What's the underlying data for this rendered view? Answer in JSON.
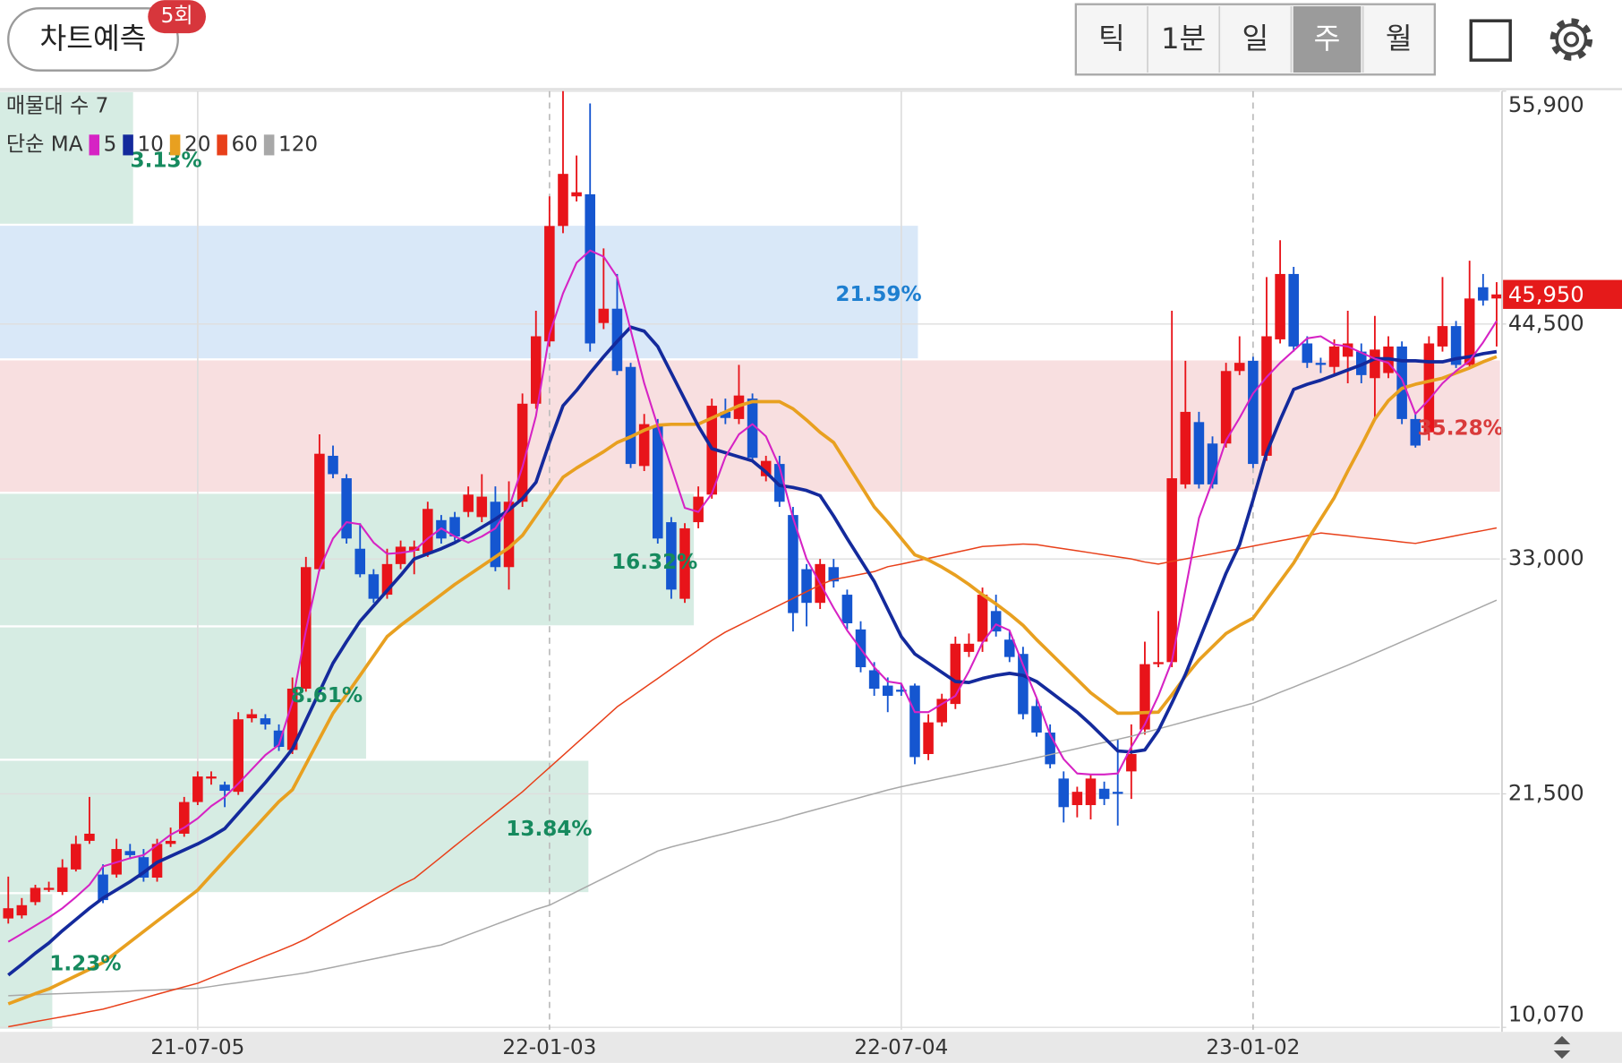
{
  "top_bar": {
    "button": "차트예측",
    "badge": "5회",
    "periods": [
      "틱",
      "1분",
      "일",
      "주",
      "월"
    ],
    "selected_period": "주"
  },
  "chart_data": {
    "type": "candlestick",
    "profile_title": "매물대 수 7",
    "ma_title": "단순 MA",
    "up_color": "#e8141a",
    "down_color": "#1556d0",
    "categories": [
      null,
      null,
      null,
      null,
      null,
      null,
      null,
      null,
      null,
      null,
      null,
      null,
      null,
      null,
      "21-07-05",
      null,
      null,
      null,
      null,
      null,
      null,
      null,
      null,
      null,
      null,
      null,
      null,
      null,
      null,
      null,
      null,
      null,
      null,
      null,
      null,
      null,
      null,
      null,
      null,
      null,
      "22-01-03",
      null,
      null,
      null,
      null,
      null,
      null,
      null,
      null,
      null,
      null,
      null,
      null,
      null,
      null,
      null,
      null,
      null,
      null,
      null,
      null,
      null,
      null,
      null,
      null,
      null,
      "22-07-04",
      null,
      null,
      null,
      null,
      null,
      null,
      null,
      null,
      null,
      null,
      null,
      null,
      null,
      null,
      null,
      null,
      null,
      null,
      null,
      null,
      null,
      null,
      null,
      null,
      null,
      "23-01-02",
      null,
      null,
      null,
      null,
      null,
      null,
      null,
      null,
      null,
      null,
      null,
      null,
      null,
      null,
      null,
      null,
      null,
      null
    ],
    "open": [
      15400,
      15550,
      16200,
      16800,
      16700,
      17800,
      19200,
      17550,
      17550,
      18700,
      18400,
      17400,
      19050,
      19550,
      21100,
      22250,
      21950,
      21600,
      25200,
      25200,
      24600,
      23650,
      26650,
      32500,
      38050,
      36950,
      33500,
      32250,
      31250,
      32750,
      33400,
      33250,
      34900,
      35050,
      35300,
      35050,
      35800,
      32600,
      35800,
      40600,
      43650,
      49300,
      50750,
      50850,
      44550,
      45250,
      42400,
      37550,
      39500,
      34800,
      31050,
      34800,
      36150,
      40200,
      39850,
      40850,
      37050,
      37650,
      35150,
      32500,
      30850,
      32600,
      31250,
      29550,
      27550,
      26800,
      26600,
      26800,
      23450,
      25000,
      25900,
      28450,
      28950,
      30450,
      29050,
      28350,
      25800,
      24500,
      22250,
      20950,
      20950,
      21750,
      21600,
      22600,
      24650,
      27850,
      27950,
      36650,
      39700,
      38650,
      38650,
      42200,
      42700,
      38050,
      43750,
      46950,
      43550,
      42600,
      42400,
      42900,
      43150,
      41850,
      42100,
      43400,
      39850,
      39200,
      43400,
      44400,
      42500,
      46300,
      45750
    ],
    "high": [
      17450,
      16400,
      17050,
      17200,
      18300,
      19450,
      21350,
      18050,
      19300,
      19050,
      18800,
      19300,
      19850,
      21350,
      22600,
      22600,
      22100,
      25500,
      25650,
      25400,
      24900,
      27200,
      33100,
      39100,
      38550,
      37150,
      34750,
      32500,
      33500,
      33900,
      33900,
      35800,
      35150,
      35300,
      36550,
      37150,
      36550,
      36800,
      41100,
      45150,
      50750,
      55900,
      52750,
      55300,
      48200,
      46950,
      42600,
      40100,
      39850,
      35050,
      34750,
      36550,
      40850,
      40850,
      42500,
      41100,
      38050,
      38050,
      35550,
      32750,
      33000,
      33000,
      31500,
      29950,
      27950,
      27200,
      26900,
      26900,
      25400,
      26400,
      29200,
      29350,
      31600,
      31250,
      29450,
      28700,
      26150,
      24900,
      22600,
      21850,
      22450,
      22100,
      24150,
      24900,
      28950,
      30450,
      45150,
      42700,
      40200,
      39000,
      42600,
      43900,
      42900,
      46800,
      48600,
      47300,
      43900,
      42850,
      43750,
      45150,
      43550,
      44900,
      43900,
      43650,
      40100,
      43900,
      46800,
      44650,
      47600,
      46950,
      46550
    ],
    "low": [
      15150,
      15400,
      16050,
      16700,
      16550,
      17700,
      19050,
      16150,
      17400,
      18300,
      17200,
      17200,
      18900,
      19400,
      20950,
      21950,
      20850,
      21450,
      25000,
      24650,
      23600,
      23450,
      26500,
      32400,
      36950,
      33750,
      32100,
      30850,
      31050,
      32500,
      32250,
      33100,
      33750,
      33900,
      35050,
      34800,
      32400,
      31500,
      35550,
      40350,
      43400,
      48950,
      50500,
      43150,
      44250,
      42000,
      37450,
      37300,
      33750,
      31050,
      30850,
      34500,
      35950,
      39600,
      39600,
      37750,
      36800,
      35550,
      29450,
      29700,
      30550,
      31600,
      29550,
      27450,
      26300,
      25500,
      26300,
      22950,
      23150,
      24800,
      25650,
      28200,
      28450,
      29200,
      27950,
      25150,
      24300,
      22750,
      20100,
      20350,
      20250,
      20950,
      19950,
      21250,
      24400,
      27700,
      27700,
      36450,
      36450,
      36450,
      38450,
      42000,
      37450,
      37800,
      43550,
      43150,
      42350,
      42100,
      42000,
      41600,
      41600,
      39850,
      41850,
      39600,
      38450,
      38800,
      43150,
      42350,
      42350,
      45400,
      43400
    ],
    "close": [
      15900,
      16050,
      16900,
      16900,
      17900,
      19050,
      19550,
      16300,
      18800,
      18500,
      17400,
      19050,
      19200,
      21100,
      22350,
      22350,
      21650,
      25150,
      25400,
      24900,
      23800,
      26650,
      32600,
      38150,
      37150,
      34000,
      32250,
      31050,
      32750,
      33600,
      33600,
      35450,
      34000,
      34100,
      36150,
      36050,
      32600,
      35800,
      40600,
      43900,
      49300,
      51850,
      50950,
      43550,
      45250,
      42200,
      37650,
      39600,
      34000,
      31500,
      34500,
      36050,
      40500,
      39900,
      41000,
      37950,
      37800,
      35800,
      30350,
      30850,
      32750,
      31900,
      29850,
      27700,
      26650,
      26300,
      26500,
      23300,
      25000,
      26150,
      28850,
      28850,
      31250,
      29450,
      28200,
      25400,
      24500,
      22950,
      20850,
      21600,
      22250,
      21250,
      21500,
      23450,
      27850,
      27950,
      36950,
      40200,
      36650,
      36650,
      42200,
      42600,
      37650,
      43900,
      46950,
      43400,
      42600,
      42500,
      43400,
      43550,
      42000,
      43250,
      43400,
      39850,
      38550,
      43550,
      44400,
      42500,
      45750,
      45650,
      45950
    ],
    "current_price": {
      "value": 45950,
      "label": "45,950"
    },
    "series": [
      {
        "name": "5",
        "color": "#d623c4",
        "values": [
          14260,
          14650,
          15050,
          15450,
          15900,
          16450,
          17050,
          17950,
          18150,
          18350,
          18500,
          19000,
          19500,
          19850,
          20300,
          20900,
          21350,
          22000,
          22700,
          23400,
          23900,
          26000,
          29500,
          32500,
          34000,
          34800,
          34700,
          33800,
          33250,
          33300,
          33400,
          34000,
          34500,
          34100,
          33800,
          34100,
          34500,
          35500,
          37500,
          40000,
          44000,
          46000,
          47500,
          48100,
          47800,
          46800,
          44200,
          41600,
          39500,
          37500,
          35500,
          35300,
          36200,
          38000,
          39100,
          39600,
          39000,
          37500,
          35000,
          33000,
          31800,
          30600,
          29500,
          28600,
          27700,
          27000,
          26900,
          25500,
          25500,
          25900,
          26300,
          27500,
          28900,
          29800,
          29500,
          27800,
          26200,
          24400,
          23200,
          22500,
          22450,
          22450,
          22500,
          23800,
          24900,
          26300,
          28000,
          31500,
          35000,
          36800,
          38800,
          39900,
          41100,
          41900,
          42600,
          43200,
          43800,
          43900,
          43500,
          43400,
          43100,
          42800,
          42600,
          41800,
          40100,
          40800,
          41600,
          42200,
          42700,
          43600,
          44650
        ]
      },
      {
        "name": "10",
        "color": "#142a9c",
        "values": [
          12630,
          13150,
          13700,
          14200,
          14800,
          15350,
          15900,
          16400,
          16800,
          17200,
          17650,
          18150,
          18450,
          18750,
          19050,
          19400,
          19800,
          20550,
          21300,
          22050,
          22850,
          23700,
          25100,
          26500,
          27900,
          28950,
          29950,
          30700,
          31450,
          32200,
          33000,
          33250,
          33500,
          33800,
          34150,
          34550,
          34950,
          35400,
          35950,
          36750,
          38700,
          40500,
          41250,
          42100,
          42900,
          43650,
          44350,
          44150,
          43400,
          42100,
          40800,
          39500,
          38400,
          38200,
          38000,
          37800,
          37250,
          36600,
          36500,
          36350,
          36100,
          35100,
          34000,
          32950,
          31900,
          30550,
          29200,
          28350,
          27900,
          27450,
          27000,
          26950,
          27150,
          27300,
          27400,
          27300,
          27000,
          26500,
          26000,
          25500,
          24900,
          24250,
          23600,
          23550,
          23650,
          24600,
          25950,
          27350,
          29000,
          30650,
          32300,
          33700,
          35900,
          38200,
          39800,
          41300,
          41550,
          41750,
          42000,
          42250,
          42500,
          42800,
          42800,
          42700,
          42700,
          42650,
          42650,
          42800,
          42900,
          43050,
          43150
        ]
      },
      {
        "name": "20",
        "color": "#e8a020",
        "values": [
          11220,
          11470,
          11720,
          11950,
          12270,
          12590,
          12910,
          13240,
          13740,
          14250,
          14760,
          15270,
          15770,
          16280,
          16790,
          17520,
          18240,
          18960,
          19680,
          20400,
          21120,
          21700,
          22950,
          24200,
          25450,
          26350,
          27300,
          28250,
          29200,
          29750,
          30250,
          30750,
          31250,
          31750,
          32200,
          32650,
          33100,
          33550,
          34150,
          35100,
          36050,
          37000,
          37450,
          37850,
          38250,
          38700,
          38980,
          39300,
          39550,
          39590,
          39590,
          39600,
          39900,
          40200,
          40500,
          40700,
          40700,
          40700,
          40350,
          39800,
          39200,
          38700,
          37650,
          36600,
          35550,
          34800,
          34000,
          33200,
          32950,
          32600,
          32200,
          31750,
          31250,
          30800,
          30300,
          29750,
          29050,
          28400,
          27750,
          27100,
          26450,
          25950,
          25450,
          25450,
          25480,
          25500,
          26350,
          27250,
          28050,
          28700,
          29350,
          29750,
          30100,
          31000,
          31900,
          32800,
          33900,
          34950,
          36000,
          37300,
          38550,
          39850,
          40750,
          41350,
          41550,
          41700,
          41850,
          42100,
          42350,
          42650,
          42900
        ]
      },
      {
        "name": "60",
        "color": "#e8401a",
        "values": [
          10100,
          10220,
          10350,
          10470,
          10590,
          10710,
          10840,
          10960,
          11140,
          11320,
          11500,
          11690,
          11870,
          12050,
          12230,
          12500,
          12760,
          13030,
          13290,
          13560,
          13820,
          14090,
          14400,
          14780,
          15150,
          15530,
          15900,
          16280,
          16650,
          17030,
          17350,
          17880,
          18410,
          18950,
          19480,
          20010,
          20540,
          21070,
          21600,
          22200,
          22790,
          23380,
          23980,
          24570,
          25160,
          25760,
          26220,
          26690,
          27150,
          27620,
          28080,
          28540,
          29010,
          29420,
          29750,
          30080,
          30410,
          30740,
          31070,
          31400,
          31730,
          32000,
          32120,
          32250,
          32380,
          32620,
          32750,
          32890,
          33030,
          33170,
          33320,
          33460,
          33610,
          33650,
          33690,
          33730,
          33700,
          33600,
          33500,
          33400,
          33300,
          33200,
          33100,
          33000,
          32850,
          32750,
          32880,
          33000,
          33130,
          33250,
          33380,
          33500,
          33630,
          33760,
          33890,
          34010,
          34140,
          34270,
          34200,
          34130,
          34050,
          33980,
          33910,
          33830,
          33760,
          33890,
          34010,
          34140,
          34270,
          34390,
          34520
        ]
      },
      {
        "name": "120",
        "color": "#a8a8a8",
        "values": [
          11620,
          11650,
          11670,
          11700,
          11720,
          11750,
          11770,
          11800,
          11820,
          11850,
          11880,
          11900,
          11930,
          11950,
          11980,
          12070,
          12170,
          12260,
          12360,
          12450,
          12550,
          12640,
          12740,
          12880,
          13010,
          13150,
          13290,
          13420,
          13560,
          13700,
          13830,
          13970,
          14100,
          14350,
          14600,
          14850,
          15100,
          15350,
          15600,
          15850,
          16050,
          16380,
          16710,
          17040,
          17370,
          17700,
          18030,
          18360,
          18700,
          18900,
          19070,
          19230,
          19400,
          19560,
          19730,
          19900,
          20060,
          20230,
          20430,
          20610,
          20790,
          20970,
          21150,
          21330,
          21510,
          21690,
          21850,
          21990,
          22130,
          22270,
          22410,
          22550,
          22690,
          22830,
          22970,
          23120,
          23270,
          23420,
          23570,
          23720,
          23870,
          24020,
          24170,
          24320,
          24500,
          24680,
          24860,
          25040,
          25220,
          25400,
          25580,
          25760,
          25940,
          26200,
          26470,
          26730,
          27000,
          27260,
          27530,
          27800,
          28080,
          28370,
          28660,
          28950,
          29240,
          29530,
          29820,
          30110,
          30400,
          30690,
          30980
        ]
      }
    ],
    "volume_profile": {
      "bins": [
        9950,
        16640,
        23170,
        29700,
        36240,
        42770,
        49360,
        55900
      ],
      "values": [
        1.23,
        13.84,
        8.61,
        16.32,
        35.28,
        21.59,
        3.13
      ],
      "value_labels": [
        "1.23%",
        "13.84%",
        "8.61%",
        "16.32%",
        "35.28%",
        "21.59%",
        "3.13%"
      ],
      "colors": [
        "#d6ece3",
        "#d6ece3",
        "#d6ece3",
        "#d6ece3",
        "#f8dfe0",
        "#d9e8f8",
        "#d6ece3"
      ],
      "label_colors": [
        "#168a5e",
        "#168a5e",
        "#168a5e",
        "#168a5e",
        "#d93a3a",
        "#1e7fd0",
        "#168a5e"
      ]
    },
    "ylim": [
      9950,
      55900
    ],
    "yticks": [
      {
        "value": 10070,
        "label": "10,070"
      },
      {
        "value": 21500,
        "label": "21,500"
      },
      {
        "value": 33000,
        "label": "33,000"
      },
      {
        "value": 44500,
        "label": "44,500"
      },
      {
        "value": 55900,
        "label": "55,900"
      }
    ],
    "grid": true
  }
}
